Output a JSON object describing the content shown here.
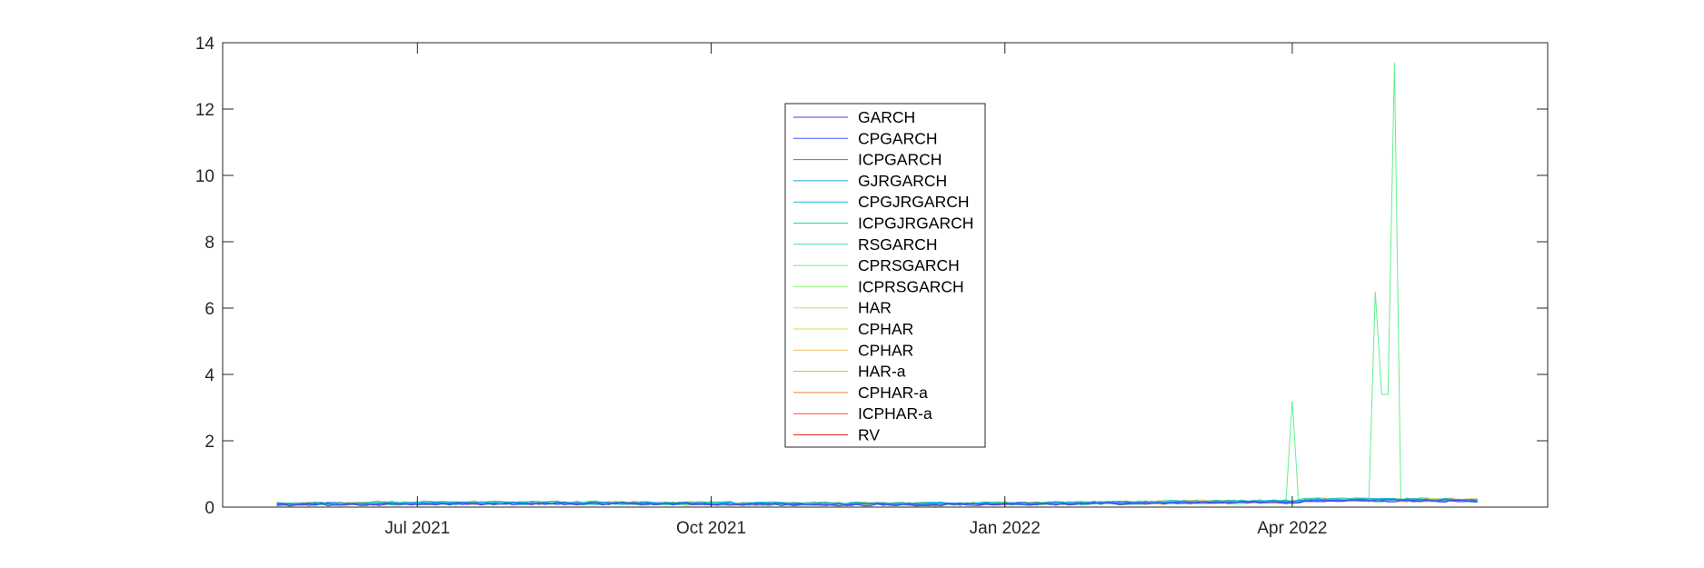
{
  "chart_data": {
    "type": "line",
    "title": "",
    "xlabel": "",
    "ylabel": "",
    "x_start": "2021-05-18",
    "x_end": "2022-05-30",
    "xlim": [
      "2021-05-01",
      "2022-06-20"
    ],
    "ylim": [
      0,
      14
    ],
    "x_ticks": [
      {
        "date": "2021-07-01",
        "label": "Jul 2021"
      },
      {
        "date": "2021-10-01",
        "label": "Oct 2021"
      },
      {
        "date": "2022-01-01",
        "label": "Jan 2022"
      },
      {
        "date": "2022-04-01",
        "label": "Apr 2022"
      }
    ],
    "y_ticks": [
      0,
      2,
      4,
      6,
      8,
      10,
      12,
      14
    ],
    "grid": false,
    "legend_position": "top-center",
    "series": [
      {
        "name": "GARCH",
        "color": "#4b3ff0"
      },
      {
        "name": "CPGARCH",
        "color": "#3b5ef2"
      },
      {
        "name": "ICPGARCH",
        "color": "#2a82f0"
      },
      {
        "name": "GJRGARCH",
        "color": "#19a6e4"
      },
      {
        "name": "CPGJRGARCH",
        "color": "#10c1d4"
      },
      {
        "name": "ICPGJRGARCH",
        "color": "#1fd6bd"
      },
      {
        "name": "RSGARCH",
        "color": "#3fe6a6"
      },
      {
        "name": "CPRSGARCH",
        "color": "#63f08e"
      },
      {
        "name": "ICPRSGARCH",
        "color": "#8ef27a"
      },
      {
        "name": "HAR",
        "color": "#b8ea6a"
      },
      {
        "name": "CPHAR",
        "color": "#d8d85c"
      },
      {
        "name": "CPHAR",
        "color": "#efc04e"
      },
      {
        "name": "HAR-a",
        "color": "#f7a142"
      },
      {
        "name": "CPHAR-a",
        "color": "#f77b36"
      },
      {
        "name": "ICPHAR-a",
        "color": "#f2512a"
      },
      {
        "name": "RV",
        "color": "#e8261e"
      }
    ],
    "spikes": [
      {
        "series": "CPRSGARCH",
        "date": "2022-04-01",
        "value": 3.2
      },
      {
        "series": "CPRSGARCH",
        "date": "2022-04-28",
        "value": 6.5
      },
      {
        "series": "CPRSGARCH",
        "date": "2022-04-30",
        "value": 3.4
      },
      {
        "series": "CPRSGARCH",
        "date": "2022-05-03",
        "value": 13.4
      }
    ]
  }
}
